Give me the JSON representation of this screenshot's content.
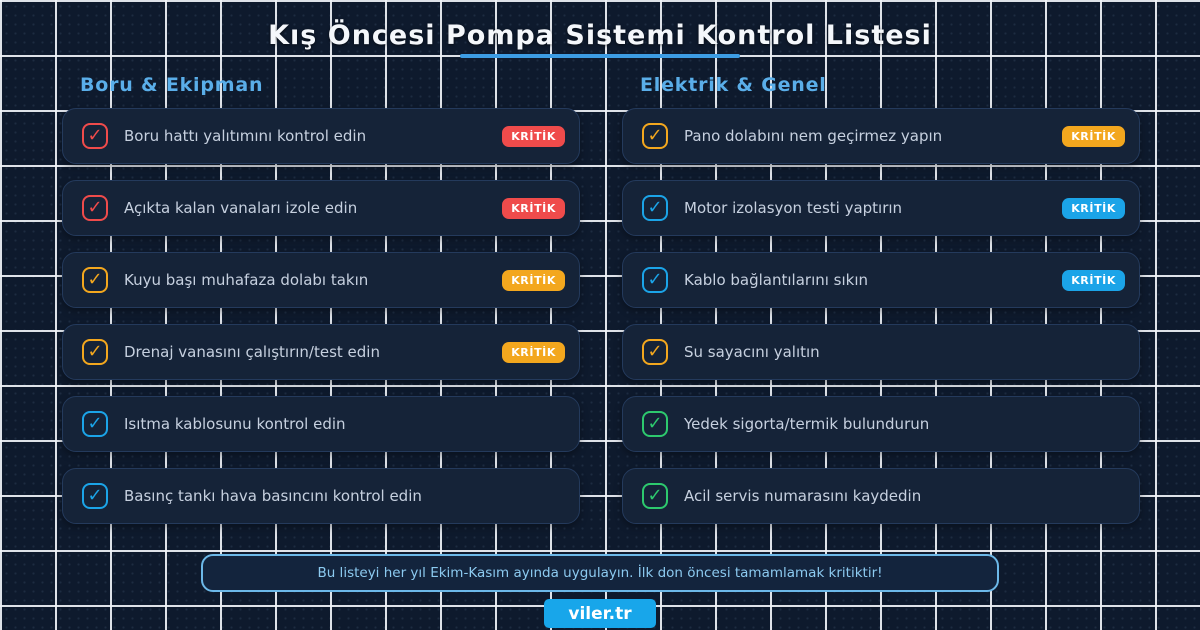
{
  "title": "Kış Öncesi Pompa Sistemi Kontrol Listesi",
  "badge_label": "KRİTİK",
  "colors": {
    "red": "#ef4b4b",
    "orange": "#f3a71e",
    "blue": "#1ba4e8",
    "green": "#2dc96e",
    "accent_underline": "#3d9de4",
    "heading": "#5aaee9",
    "brand_bg": "#18a6ea"
  },
  "columns": [
    {
      "header": "Boru & Ekipman",
      "items": [
        {
          "label": "Boru hattı yalıtımını kontrol edin",
          "color": "red",
          "critical": true
        },
        {
          "label": "Açıkta kalan vanaları izole edin",
          "color": "red",
          "critical": true
        },
        {
          "label": "Kuyu başı muhafaza dolabı takın",
          "color": "orange",
          "critical": true
        },
        {
          "label": "Drenaj vanasını çalıştırın/test edin",
          "color": "orange",
          "critical": true
        },
        {
          "label": "Isıtma kablosunu kontrol edin",
          "color": "blue",
          "critical": false
        },
        {
          "label": "Basınç tankı hava basıncını kontrol edin",
          "color": "blue",
          "critical": false
        }
      ]
    },
    {
      "header": "Elektrik & Genel",
      "items": [
        {
          "label": "Pano dolabını nem geçirmez yapın",
          "color": "orange",
          "critical": true
        },
        {
          "label": "Motor izolasyon testi yaptırın",
          "color": "blue",
          "critical": true
        },
        {
          "label": "Kablo bağlantılarını sıkın",
          "color": "blue",
          "critical": true
        },
        {
          "label": "Su sayacını yalıtın",
          "color": "orange",
          "critical": false
        },
        {
          "label": "Yedek sigorta/termik bulundurun",
          "color": "green",
          "critical": false
        },
        {
          "label": "Acil servis numarasını kaydedin",
          "color": "green",
          "critical": false
        }
      ]
    }
  ],
  "footer": {
    "note": "Bu listeyi her yıl Ekim-Kasım ayında uygulayın. İlk don öncesi tamamlamak kritiktir!",
    "brand": "viler.tr"
  },
  "icons": {
    "checkbox_glyph": "✓"
  }
}
